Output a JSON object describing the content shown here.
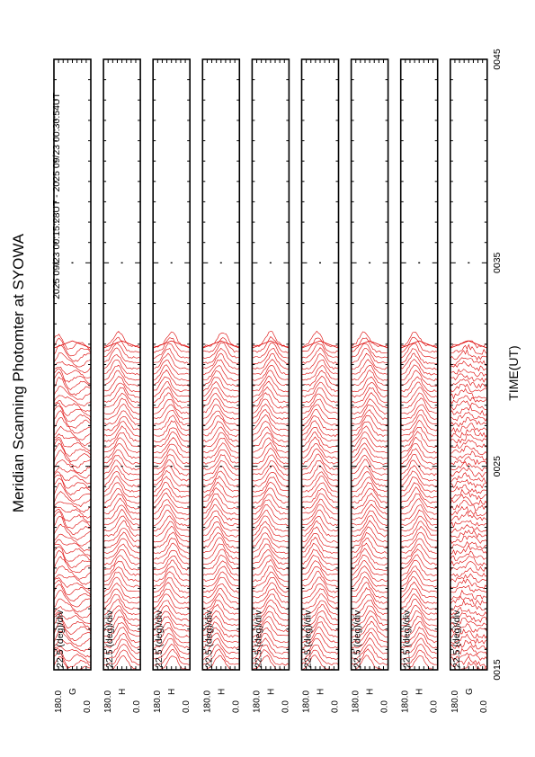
{
  "title": "Meridian Scanning Photomter at SYOWA",
  "time_range": "2025 09/23 00:15:28UT - 2025 09/23 00:30:54UT",
  "chart_data": {
    "type": "line",
    "title": "Meridian Scanning Photomter at SYOWA",
    "xlabel": "TIME(UT)",
    "x_ticks": [
      "0015",
      "0025",
      "0035",
      "0045"
    ],
    "x_range": [
      "00:15",
      "00:45"
    ],
    "data_end": "00:30:54",
    "scale_label": "22.5 (deg)/div",
    "y_tick_labels": [
      "180.0",
      "0.0"
    ],
    "panels": [
      {
        "channel": "G"
      },
      {
        "channel": "H"
      },
      {
        "channel": "H"
      },
      {
        "channel": "H"
      },
      {
        "channel": "H"
      },
      {
        "channel": "H"
      },
      {
        "channel": "H"
      },
      {
        "channel": "H"
      },
      {
        "channel": "G"
      }
    ],
    "trace_color": "#dd0000",
    "grid": false
  }
}
